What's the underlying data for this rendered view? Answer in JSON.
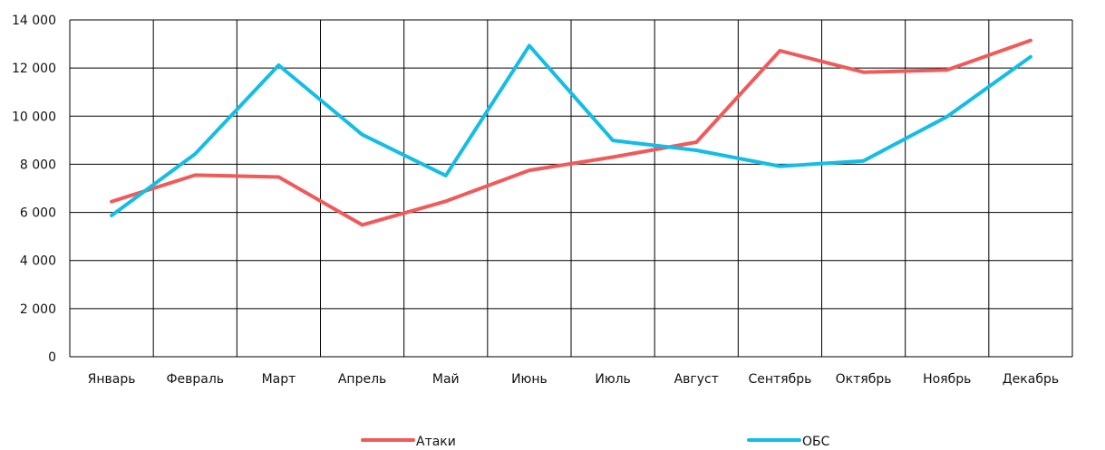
{
  "chart_data": {
    "type": "line",
    "title": "",
    "xlabel": "",
    "ylabel": "",
    "categories": [
      "Январь",
      "Февраль",
      "Март",
      "Апрель",
      "Май",
      "Июнь",
      "Июль",
      "Август",
      "Сентябрь",
      "Октябрь",
      "Ноябрь",
      "Декабрь"
    ],
    "ylim": [
      0,
      14000
    ],
    "yticks": [
      {
        "value": 0,
        "label": "0"
      },
      {
        "value": 2000,
        "label": "2 000"
      },
      {
        "value": 4000,
        "label": "4 000"
      },
      {
        "value": 6000,
        "label": "6 000"
      },
      {
        "value": 8000,
        "label": "8 000"
      },
      {
        "value": 10000,
        "label": "10 000"
      },
      {
        "value": 12000,
        "label": "12 000"
      },
      {
        "value": 14000,
        "label": "14 000"
      }
    ],
    "grid": true,
    "legend": "bottom",
    "series": [
      {
        "name": "Атаки",
        "color": "#f05a5a",
        "values": [
          6450,
          7550,
          7470,
          5480,
          6460,
          7750,
          8300,
          8920,
          12720,
          11830,
          11920,
          13150
        ]
      },
      {
        "name": "ОБС",
        "color": "#14bde6",
        "values": [
          5870,
          8430,
          12120,
          9230,
          7530,
          12930,
          8990,
          8580,
          7920,
          8140,
          9980,
          12470
        ]
      }
    ]
  }
}
